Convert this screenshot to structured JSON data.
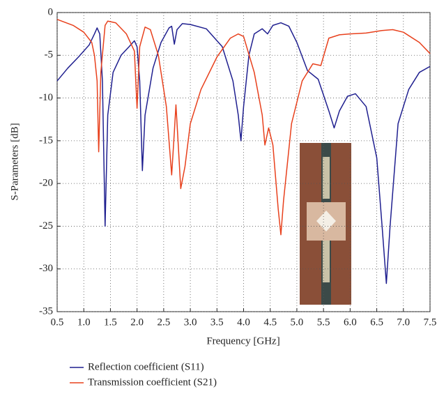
{
  "chart_data": {
    "type": "line",
    "xlabel": "Frequency [GHz]",
    "ylabel": "S-Parameters [dB]",
    "xlim": [
      0.5,
      7.5
    ],
    "ylim": [
      -35,
      0
    ],
    "xticks": [
      0.5,
      {
        "value": 1,
        "label": "1.0"
      },
      1.5,
      {
        "value": 2,
        "label": "2.0"
      },
      2.5,
      {
        "value": 3,
        "label": "3.0"
      },
      3.5,
      {
        "value": 4,
        "label": "4.0"
      },
      4.5,
      {
        "value": 5,
        "label": "5.0"
      },
      5.5,
      {
        "value": 6,
        "label": "6.0"
      },
      6.5,
      {
        "value": 7,
        "label": "7.0"
      },
      7.5
    ],
    "yticks": [
      0,
      -5,
      -10,
      -15,
      -20,
      -25,
      -30,
      -35
    ],
    "grid": true,
    "series": [
      {
        "name": "Reflection coefficient (S11)",
        "color": "#1f1f8f",
        "x": [
          0.5,
          0.7,
          0.9,
          1.1,
          1.2,
          1.25,
          1.3,
          1.35,
          1.4,
          1.45,
          1.55,
          1.7,
          1.85,
          1.95,
          2.0,
          2.05,
          2.1,
          2.15,
          2.3,
          2.45,
          2.6,
          2.65,
          2.7,
          2.75,
          2.85,
          3.0,
          3.3,
          3.6,
          3.8,
          3.9,
          3.95,
          4.0,
          4.1,
          4.2,
          4.35,
          4.45,
          4.55,
          4.7,
          4.85,
          5.0,
          5.2,
          5.4,
          5.6,
          5.7,
          5.8,
          5.95,
          6.1,
          6.3,
          6.5,
          6.6,
          6.68,
          6.75,
          6.9,
          7.1,
          7.3,
          7.5
        ],
        "values": [
          -8,
          -6.5,
          -5.2,
          -3.8,
          -2.5,
          -1.8,
          -2.5,
          -8,
          -25,
          -12,
          -7,
          -5,
          -4,
          -3.3,
          -4,
          -8,
          -18.5,
          -12,
          -6.5,
          -3.5,
          -1.8,
          -1.6,
          -3.7,
          -2,
          -1.3,
          -1.4,
          -1.9,
          -4,
          -8,
          -12,
          -15,
          -11,
          -5,
          -2.5,
          -1.9,
          -2.5,
          -1.5,
          -1.2,
          -1.6,
          -3.5,
          -6.8,
          -7.8,
          -11.5,
          -13.5,
          -11.5,
          -9.8,
          -9.5,
          -11,
          -17,
          -25,
          -31.7,
          -25,
          -13,
          -9,
          -7,
          -6.3
        ]
      },
      {
        "name": "Transmission coefficient (S21)",
        "color": "#e8401c",
        "x": [
          0.5,
          0.8,
          1.0,
          1.15,
          1.2,
          1.25,
          1.28,
          1.32,
          1.4,
          1.45,
          1.6,
          1.8,
          1.95,
          2.0,
          2.05,
          2.15,
          2.25,
          2.4,
          2.55,
          2.65,
          2.7,
          2.73,
          2.76,
          2.82,
          2.9,
          3.0,
          3.2,
          3.5,
          3.75,
          3.9,
          4.0,
          4.2,
          4.35,
          4.4,
          4.47,
          4.55,
          4.65,
          4.7,
          4.75,
          4.9,
          5.1,
          5.3,
          5.45,
          5.6,
          5.8,
          6.0,
          6.3,
          6.6,
          6.8,
          7.0,
          7.3,
          7.5
        ],
        "values": [
          -0.8,
          -1.5,
          -2.3,
          -3.5,
          -5,
          -8,
          -16.3,
          -7,
          -1.5,
          -1,
          -1.2,
          -2.5,
          -4.5,
          -11.2,
          -4,
          -1.7,
          -2,
          -5,
          -11,
          -19,
          -14,
          -10.8,
          -14,
          -20.6,
          -18,
          -13,
          -9,
          -5.2,
          -3,
          -2.5,
          -2.8,
          -7,
          -12,
          -15.5,
          -13.5,
          -15.5,
          -23,
          -26,
          -22,
          -13,
          -8,
          -6,
          -6.2,
          -3,
          -2.6,
          -2.5,
          -2.4,
          -2.1,
          -2,
          -2.3,
          -3.5,
          -4.8
        ]
      }
    ]
  }
}
